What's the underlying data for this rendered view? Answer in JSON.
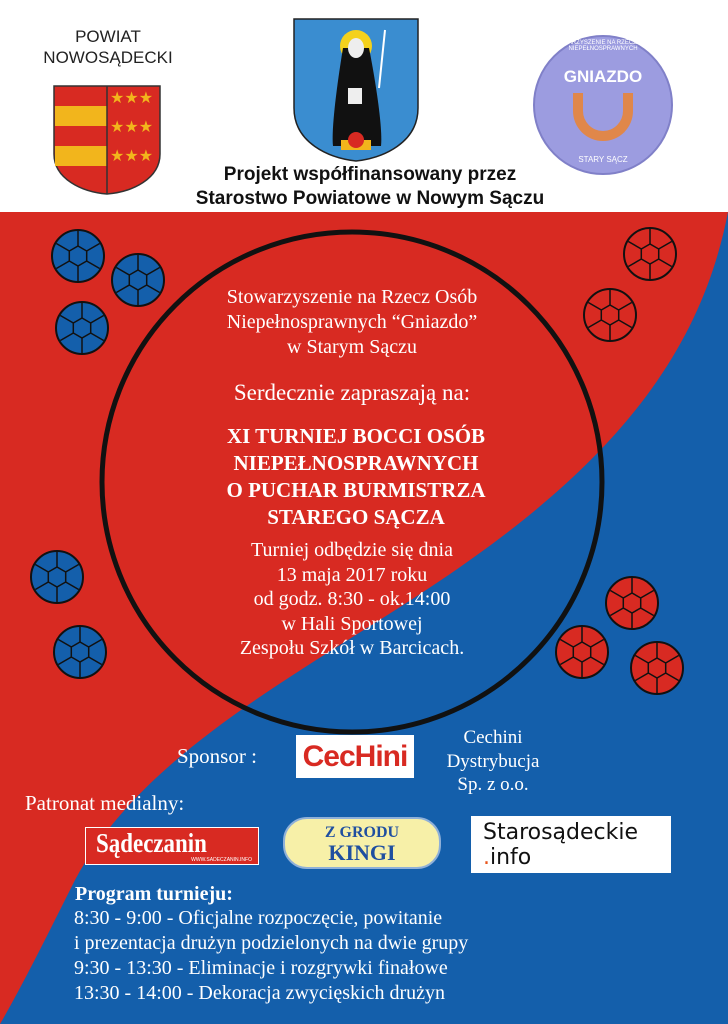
{
  "header": {
    "county_logo_text": [
      "POWIAT",
      "NOWOSĄDECKI"
    ],
    "gniazdo_logo_name": "GNIAZDO",
    "gniazdo_logo_ring": "STOWARZYSZENIE NA RZECZ OSÓB NIEPEŁNOSPRAWNYCH",
    "gniazdo_logo_city": "STARY SĄCZ",
    "cofinance_line1": "Projekt współfinansowany przez",
    "cofinance_line2": "Starostwo Powiatowe w Nowym Sączu"
  },
  "invite": {
    "org_lines": [
      "Stowarzyszenie na Rzecz Osób",
      "Niepełnosprawnych “Gniazdo”",
      "w Starym Sączu"
    ],
    "invite_line": "Serdecznie zapraszają na:",
    "title_lines": [
      "XI TURNIEJ BOCCI OSÓB",
      "NIEPEŁNOSPRAWNYCH",
      "O PUCHAR BURMISTRZA",
      "STAREGO SĄCZA"
    ],
    "detail_lines": [
      "Turniej odbędzie się dnia",
      "13 maja 2017 roku",
      "od godz. 8:30 - ok.14:00",
      "w Hali Sportowej",
      "Zespołu Szkół w Barcicach."
    ]
  },
  "sponsor": {
    "label": "Sponsor :",
    "logo_text": "CecHini",
    "name_lines": [
      "Cechini",
      "Dystrybucja",
      "Sp. z o.o."
    ]
  },
  "media": {
    "label": "Patronat medialny:",
    "sadeczanin": "Sądeczanin",
    "sadeczanin_url": "WWW.SADECZANIN.INFO",
    "kingi_line1": "Z GRODU",
    "kingi_line2": "KINGI",
    "starosadeckie_line1": "Starosądeckie",
    "starosadeckie_line2": "info"
  },
  "program": {
    "title": "Program turnieju:",
    "lines": [
      "8:30 - 9:00 - Oficjalne rozpoczęcie, powitanie",
      "i prezentacja drużyn podzielonych na dwie grupy",
      "9:30 - 13:30 - Eliminacje i rozgrywki finałowe",
      "13:30 - 14:00 - Dekoracja zwycięskich drużyn"
    ]
  },
  "colors": {
    "red": "#d82a22",
    "blue": "#145fab",
    "gold": "#f2b51c",
    "gniazdo": "#9c9ce0"
  }
}
